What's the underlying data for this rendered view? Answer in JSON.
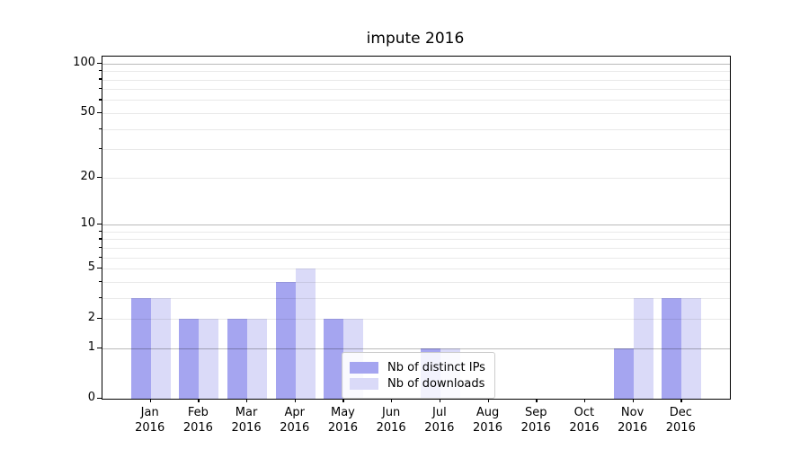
{
  "chart_data": {
    "type": "bar",
    "title": "impute 2016",
    "xlabel": "",
    "ylabel": "",
    "categories": [
      "Jan",
      "Feb",
      "Mar",
      "Apr",
      "May",
      "Jun",
      "Jul",
      "Aug",
      "Sep",
      "Oct",
      "Nov",
      "Dec"
    ],
    "year_label": "2016",
    "series": [
      {
        "name": "Nb of distinct IPs",
        "color": "#a5a5f0",
        "values": [
          3,
          2,
          2,
          4,
          2,
          0,
          1,
          0,
          0,
          0,
          1,
          3
        ]
      },
      {
        "name": "Nb of downloads",
        "color": "#dadaf8",
        "values": [
          3,
          2,
          2,
          5,
          2,
          0,
          1,
          0,
          0,
          0,
          3,
          3
        ]
      }
    ],
    "yaxis": {
      "scale": "log1p",
      "tick_labels": [
        0,
        1,
        2,
        5,
        10,
        20,
        50,
        100
      ],
      "major_gridlines": [
        1,
        10,
        100
      ],
      "minor_gridlines": [
        2,
        3,
        4,
        5,
        6,
        7,
        8,
        9,
        20,
        30,
        40,
        50,
        60,
        70,
        80,
        90
      ],
      "max": 110
    },
    "legend": {
      "position": "lower-center",
      "entries": [
        "Nb of distinct IPs",
        "Nb of downloads"
      ]
    },
    "colors": {
      "bar_distinct_ips": "#a5a5f0",
      "bar_downloads": "#dadaf8",
      "major_grid": "#bdbdbd",
      "minor_grid": "#e8e8e8",
      "spine": "#000000",
      "legend_border": "#cccccc",
      "background": "#ffffff"
    }
  }
}
